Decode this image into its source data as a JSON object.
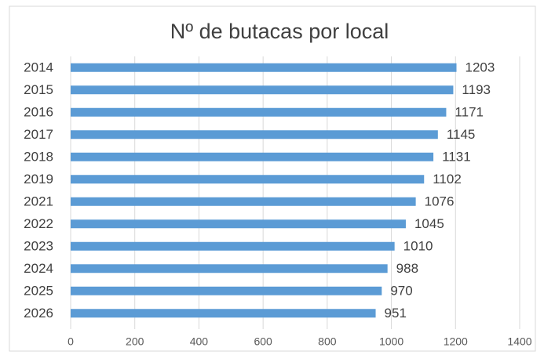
{
  "chart_data": {
    "type": "bar",
    "orientation": "horizontal",
    "title": "Nº de butacas por local",
    "categories": [
      "2014",
      "2015",
      "2016",
      "2017",
      "2018",
      "2019",
      "2021",
      "2022",
      "2023",
      "2024",
      "2025",
      "2026"
    ],
    "values": [
      1203,
      1193,
      1171,
      1145,
      1131,
      1102,
      1076,
      1045,
      1010,
      988,
      970,
      951
    ],
    "color": "#5b9bd5",
    "xlim": [
      0,
      1400
    ],
    "xticks": [
      0,
      200,
      400,
      600,
      800,
      1000,
      1200,
      1400
    ],
    "grid": true
  }
}
